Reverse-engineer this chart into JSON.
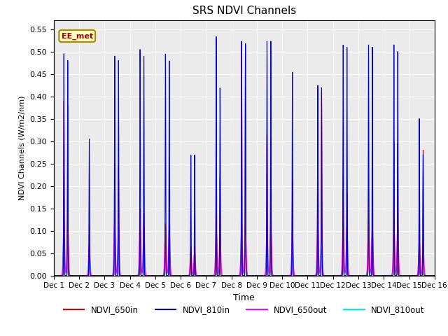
{
  "title": "SRS NDVI Channels",
  "ylabel": "NDVI Channels (W/m2/nm)",
  "xlabel": "Time",
  "ylim": [
    0,
    0.57
  ],
  "yticks": [
    0.0,
    0.05,
    0.1,
    0.15,
    0.2,
    0.25,
    0.3,
    0.35,
    0.4,
    0.45,
    0.5,
    0.55
  ],
  "xtick_labels": [
    "Dec 1",
    "Dec 2",
    "Dec 3",
    "Dec 4",
    "Dec 5",
    "Dec 6",
    "Dec 7",
    "Dec 8",
    "Dec 9",
    "Dec 10",
    "Dec 11",
    "Dec 12",
    "Dec 13",
    "Dec 14",
    "Dec 15",
    "Dec 16"
  ],
  "annotation_text": "EE_met",
  "colors": {
    "NDVI_650in": "#dd0000",
    "NDVI_810in": "#0000dd",
    "NDVI_650out": "#ff00ff",
    "NDVI_810out": "#00eeee"
  },
  "bg_color": "#ebebeb",
  "spike_810in": [
    0.495,
    0.305,
    0.49,
    0.505,
    0.495,
    0.27,
    0.535,
    0.525,
    0.525,
    0.455,
    0.425,
    0.515,
    0.515,
    0.515,
    0.35
  ],
  "spike_650in": [
    0.39,
    0.11,
    0.25,
    0.15,
    0.115,
    0.065,
    0.25,
    0.525,
    0.315,
    0.215,
    0.415,
    0.19,
    0.19,
    0.3,
    0.31
  ],
  "spike_650out": [
    0.13,
    0.07,
    0.125,
    0.12,
    0.115,
    0.06,
    0.11,
    0.115,
    0.115,
    0.105,
    0.12,
    0.12,
    0.125,
    0.125,
    0.08
  ],
  "spike_810out": [
    0.075,
    0.03,
    0.065,
    0.065,
    0.065,
    0.025,
    0.06,
    0.065,
    0.065,
    0.055,
    0.06,
    0.06,
    0.065,
    0.065,
    0.045
  ],
  "spike2_810in": [
    0.48,
    0.0,
    0.48,
    0.49,
    0.48,
    0.27,
    0.42,
    0.52,
    0.525,
    0.0,
    0.42,
    0.51,
    0.51,
    0.5,
    0.27
  ],
  "spike2_650in": [
    0.38,
    0.0,
    0.245,
    0.14,
    0.11,
    0.065,
    0.22,
    0.52,
    0.31,
    0.0,
    0.41,
    0.185,
    0.185,
    0.295,
    0.28
  ],
  "spike2_650out": [
    0.125,
    0.0,
    0.12,
    0.115,
    0.11,
    0.058,
    0.095,
    0.112,
    0.112,
    0.0,
    0.115,
    0.115,
    0.118,
    0.118,
    0.073
  ],
  "spike2_810out": [
    0.07,
    0.0,
    0.063,
    0.062,
    0.062,
    0.022,
    0.055,
    0.062,
    0.062,
    0.0,
    0.058,
    0.058,
    0.062,
    0.062,
    0.04
  ]
}
